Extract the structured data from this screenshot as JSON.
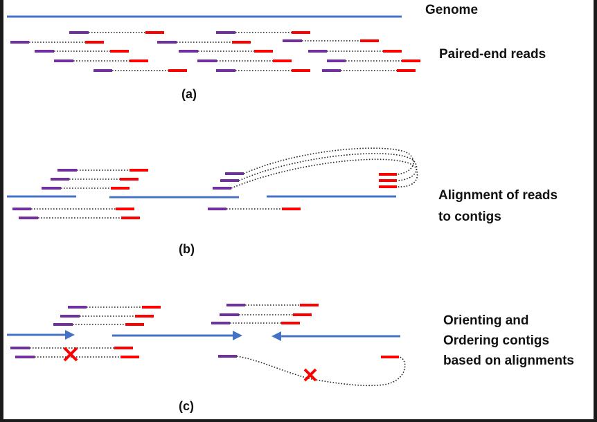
{
  "labels": {
    "genome": "Genome",
    "paired_end_reads": "Paired-end reads",
    "alignment": "Alignment of reads\nto contigs",
    "orienting": "Orienting and\nOrdering contigs\nbased on alignments"
  },
  "panels": {
    "a": "(a)",
    "b": "(b)",
    "c": "(c)"
  },
  "colors": {
    "genome": "#4472c4",
    "read_left": "#7030a0",
    "read_right": "#ff0000",
    "link": "#222222",
    "cross": "#ff0000"
  },
  "icons": {
    "rejected_link": "cross-icon",
    "orientation": "arrow-icon"
  }
}
